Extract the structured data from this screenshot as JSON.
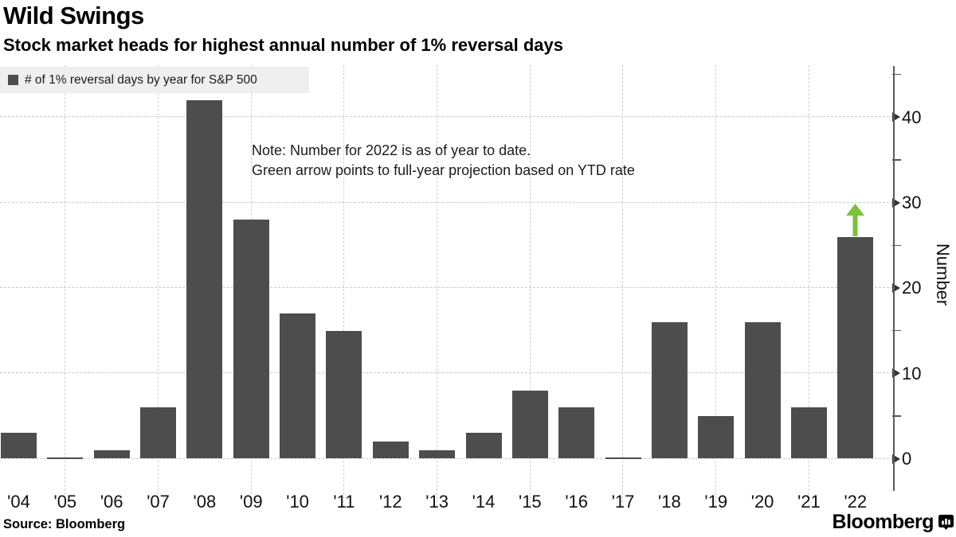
{
  "title": "Wild Swings",
  "subtitle": "Stock market heads for highest annual number of 1% reversal days",
  "legend": {
    "label": "# of 1% reversal days by year for S&P 500",
    "swatch_color": "#4d4d4d"
  },
  "note": {
    "line1": "Note: Number for 2022 is as of year to date.",
    "line2": "Green arrow points to full-year projection based on YTD rate"
  },
  "source": "Source: Bloomberg",
  "branding": {
    "logo_text": "Bloomberg",
    "logo_icon": "bar-chart-bubble-icon"
  },
  "chart_data": {
    "type": "bar",
    "title": "Wild Swings",
    "subtitle": "Stock market heads for highest annual number of 1% reversal days",
    "series_name": "# of 1% reversal days by year for S&P 500",
    "categories": [
      "'04",
      "'05",
      "'06",
      "'07",
      "'08",
      "'09",
      "'10",
      "'11",
      "'12",
      "'13",
      "'14",
      "'15",
      "'16",
      "'17",
      "'18",
      "'19",
      "'20",
      "'21",
      "'22"
    ],
    "values": [
      3,
      0,
      1,
      6,
      42,
      28,
      17,
      15,
      2,
      1,
      3,
      8,
      6,
      0,
      16,
      5,
      16,
      6,
      26
    ],
    "xlabel": "",
    "ylabel": "Number",
    "ylim": [
      0,
      45
    ],
    "y_major_ticks": [
      0,
      10,
      20,
      30,
      40
    ],
    "y_minor_ticks": [
      5,
      15,
      25,
      35,
      45
    ],
    "grid": {
      "horizontal": "dashed at major ticks",
      "vertical": "dashed at odd years",
      "vertical_grid_categories": [
        "'05",
        "'07",
        "'09",
        "'11",
        "'13",
        "'15",
        "'17",
        "'19",
        "'21"
      ]
    },
    "legend_position": "top-left",
    "y_axis_position": "right",
    "bar_color": "#4d4d4d",
    "annotation": {
      "category": "'22",
      "note": "Green arrow points to full-year projection based on YTD rate",
      "projection_value": 30,
      "arrow_color": "#7cc13a"
    }
  }
}
